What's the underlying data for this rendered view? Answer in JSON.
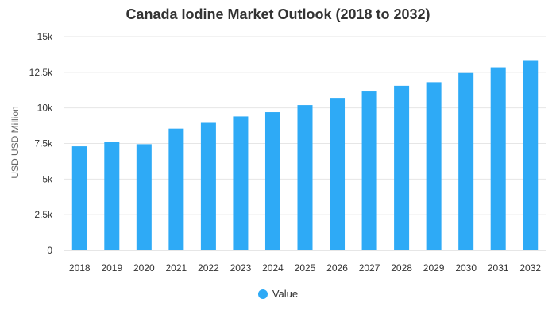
{
  "chart_data": {
    "type": "bar",
    "title": "Canada Iodine Market Outlook (2018 to 2032)",
    "xlabel": "",
    "ylabel": "USD USD Million",
    "categories": [
      "2018",
      "2019",
      "2020",
      "2021",
      "2022",
      "2023",
      "2024",
      "2025",
      "2026",
      "2027",
      "2028",
      "2029",
      "2030",
      "2031",
      "2032"
    ],
    "series": [
      {
        "name": "Value",
        "color": "#2eaaf6",
        "values": [
          7300,
          7600,
          7450,
          8550,
          8950,
          9400,
          9700,
          10200,
          10700,
          11150,
          11550,
          11800,
          12450,
          12850,
          13300
        ]
      }
    ],
    "ylim": [
      0,
      15000
    ],
    "yticks": [
      0,
      2500,
      5000,
      7500,
      10000,
      12500,
      15000
    ],
    "ytick_labels": [
      "0",
      "2.5k",
      "5k",
      "7.5k",
      "10k",
      "12.5k",
      "15k"
    ],
    "grid": true,
    "legend_position": "bottom-center"
  }
}
